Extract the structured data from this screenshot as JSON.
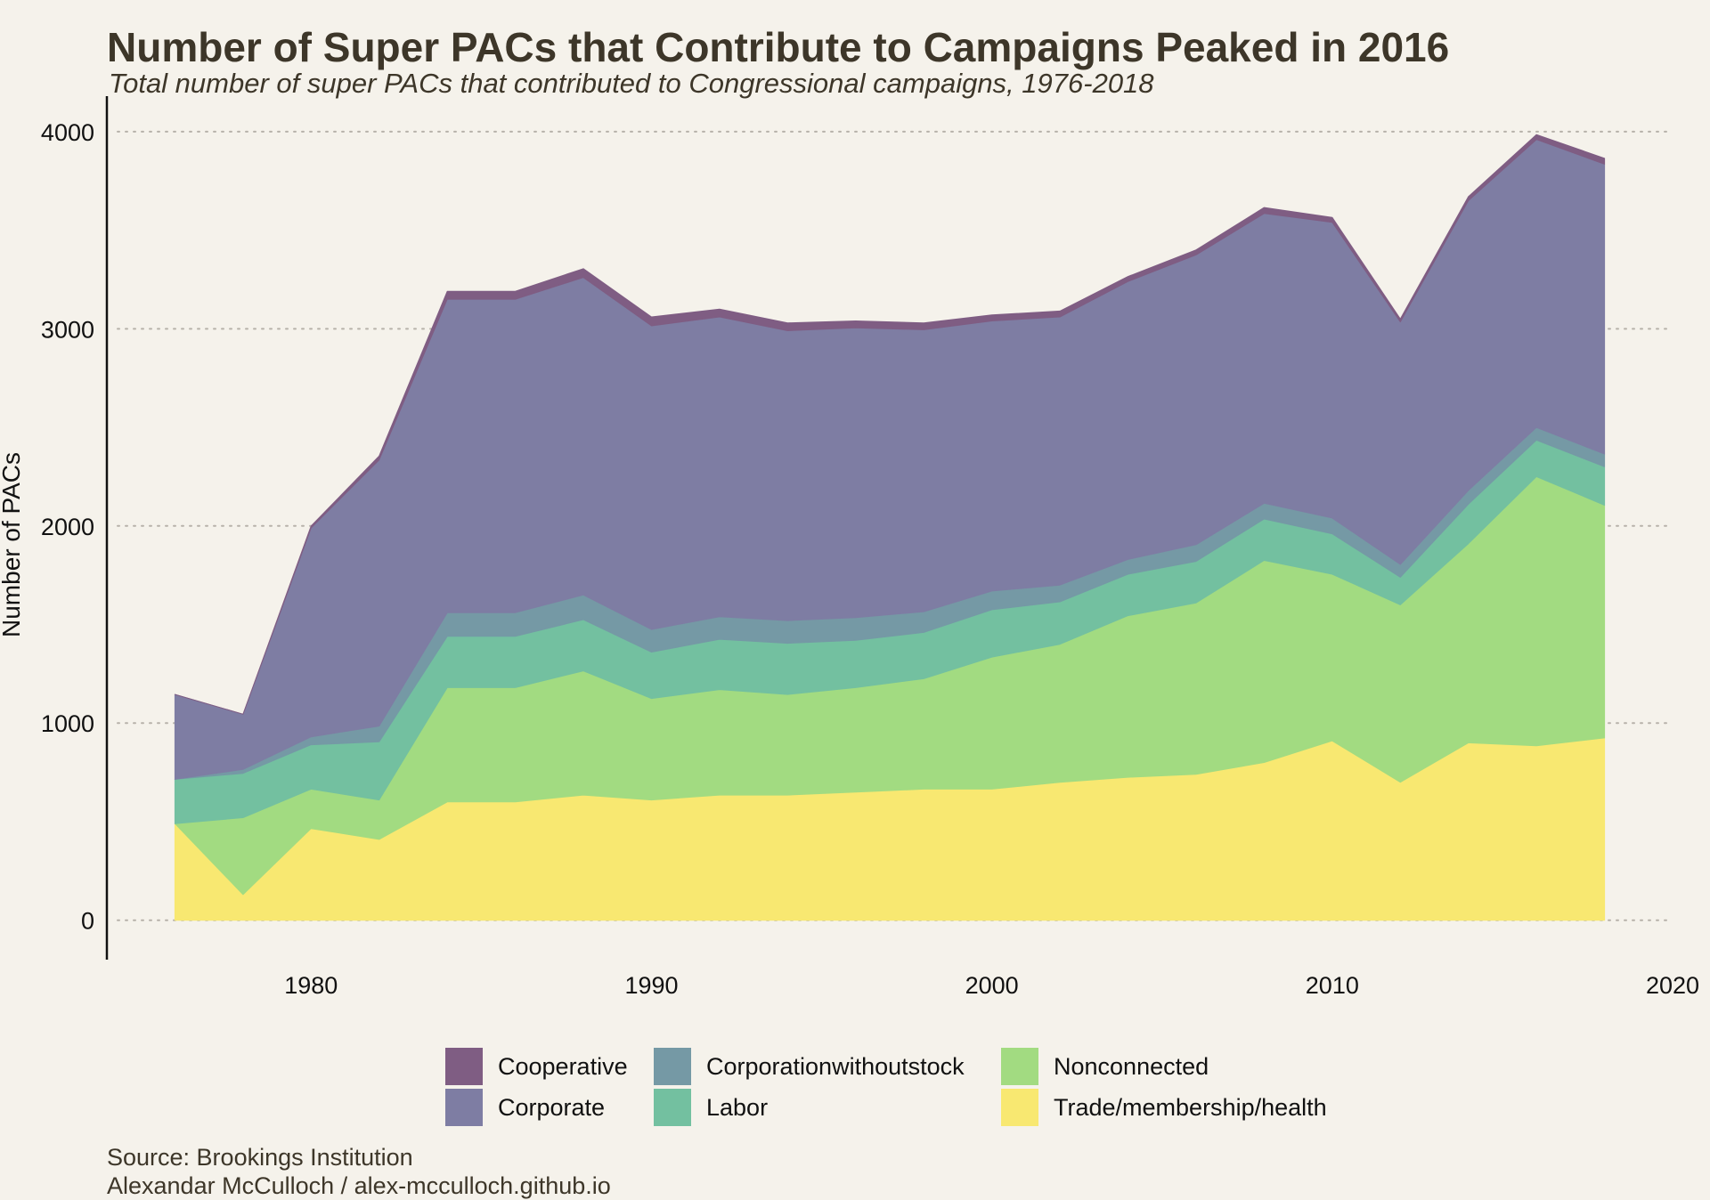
{
  "title": "Number of Super PACs that Contribute to Campaigns Peaked in 2016",
  "subtitle": "Total number of super PACs that contributed to Congressional campaigns, 1976-2018",
  "source_line1": "Source: Brookings Institution",
  "source_line2": "Alexandar McCulloch / alex-mcculloch.github.io",
  "chart_data": {
    "type": "area",
    "stacked": true,
    "title": "Number of Super PACs that Contribute to Campaigns Peaked in 2016",
    "subtitle": "Total number of super PACs that contributed to Congressional campaigns, 1976-2018",
    "xlabel": "",
    "ylabel": "Number of PACs",
    "xlim": [
      1974,
      2020
    ],
    "ylim": [
      -200,
      4180
    ],
    "xticks": [
      1980,
      1990,
      2000,
      2010,
      2020
    ],
    "yticks": [
      0,
      1000,
      2000,
      3000,
      4000
    ],
    "grid": "horizontal dotted",
    "legend_position": "bottom",
    "x": [
      1976,
      1978,
      1980,
      1982,
      1984,
      1986,
      1988,
      1990,
      1992,
      1994,
      1996,
      1998,
      2000,
      2002,
      2004,
      2006,
      2008,
      2010,
      2012,
      2014,
      2016,
      2018
    ],
    "series": [
      {
        "name": "Trade/membership/health",
        "color": "#f8e871",
        "values": [
          490,
          130,
          465,
          410,
          600,
          600,
          635,
          610,
          635,
          635,
          650,
          665,
          665,
          700,
          725,
          740,
          800,
          910,
          700,
          900,
          885,
          925
        ]
      },
      {
        "name": "Nonconnected",
        "color": "#a2db81",
        "values": [
          0,
          390,
          200,
          200,
          580,
          580,
          630,
          515,
          535,
          510,
          530,
          560,
          670,
          700,
          820,
          870,
          1025,
          845,
          900,
          1010,
          1365,
          1180
        ]
      },
      {
        "name": "Labor",
        "color": "#73c0a0",
        "values": [
          225,
          225,
          225,
          295,
          260,
          260,
          260,
          235,
          255,
          260,
          240,
          235,
          240,
          215,
          210,
          210,
          210,
          205,
          140,
          200,
          185,
          195
        ]
      },
      {
        "name": "Corporationwithoutstock",
        "color": "#7599a5",
        "values": [
          0,
          20,
          40,
          80,
          120,
          120,
          125,
          115,
          115,
          115,
          115,
          105,
          95,
          85,
          75,
          85,
          80,
          80,
          65,
          70,
          65,
          65
        ]
      },
      {
        "name": "Corporate",
        "color": "#7e7da3",
        "values": [
          430,
          280,
          1060,
          1350,
          1590,
          1590,
          1610,
          1540,
          1520,
          1470,
          1470,
          1430,
          1370,
          1360,
          1410,
          1470,
          1470,
          1500,
          1230,
          1470,
          1460,
          1470
        ]
      },
      {
        "name": "Cooperative",
        "color": "#7f5d83",
        "values": [
          0,
          0,
          10,
          20,
          40,
          40,
          45,
          45,
          40,
          40,
          35,
          35,
          30,
          30,
          25,
          25,
          30,
          25,
          15,
          20,
          25,
          30
        ]
      }
    ]
  }
}
